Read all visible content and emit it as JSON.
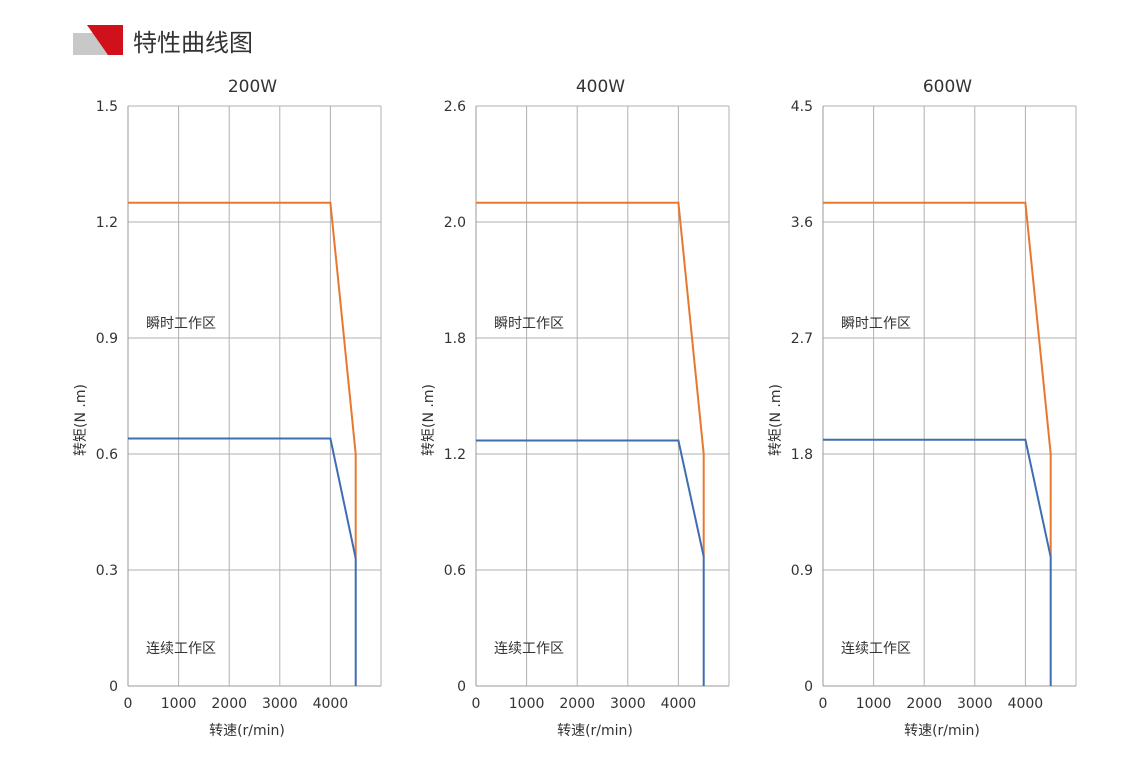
{
  "header": {
    "title": "特性曲线图",
    "logo_colors": {
      "gray": "#c8c8c8",
      "red": "#d0111b"
    }
  },
  "colors": {
    "peak": "#e8782e",
    "continuous": "#3f6db3",
    "grid": "#b0b0b0",
    "axis": "#999999"
  },
  "chart_data": [
    {
      "type": "line",
      "title": "200W",
      "xlabel": "转速(r/min)",
      "ylabel": "转矩(N .m)",
      "xlim": [
        0,
        5000
      ],
      "xticks": [
        0,
        1000,
        2000,
        3000,
        4000
      ],
      "yticks": [
        "0",
        "0.3",
        "0.6",
        "0.9",
        "1.2",
        "1.5"
      ],
      "grid": true,
      "annotations": [
        {
          "text": "瞬时工作区"
        },
        {
          "text": "连续工作区"
        }
      ],
      "series": [
        {
          "key": "peak",
          "x": [
            0,
            4000,
            4500,
            4500
          ],
          "y": [
            1.25,
            1.25,
            0.6,
            0.33
          ]
        },
        {
          "key": "continuous",
          "x": [
            0,
            4000,
            4500,
            4500
          ],
          "y": [
            0.64,
            0.64,
            0.33,
            0
          ]
        }
      ]
    },
    {
      "type": "line",
      "title": "400W",
      "xlabel": "转速(r/min)",
      "ylabel": "转矩(N .m)",
      "xlim": [
        0,
        5000
      ],
      "xticks": [
        0,
        1000,
        2000,
        3000,
        4000
      ],
      "yticks": [
        "0",
        "0.6",
        "1.2",
        "1.8",
        "2.0",
        "2.6"
      ],
      "grid": true,
      "annotations": [
        {
          "text": "瞬时工作区"
        },
        {
          "text": "连续工作区"
        }
      ],
      "series": [
        {
          "key": "peak",
          "x": [
            0,
            4000,
            4500,
            4500
          ],
          "y": [
            2.1,
            2.1,
            1.2,
            0.67
          ]
        },
        {
          "key": "continuous",
          "x": [
            0,
            4000,
            4500,
            4500
          ],
          "y": [
            1.27,
            1.27,
            0.67,
            0
          ]
        }
      ]
    },
    {
      "type": "line",
      "title": "600W",
      "xlabel": "转速(r/min)",
      "ylabel": "转矩(N .m)",
      "xlim": [
        0,
        5000
      ],
      "xticks": [
        0,
        1000,
        2000,
        3000,
        4000
      ],
      "yticks": [
        "0",
        "0.9",
        "1.8",
        "2.7",
        "3.6",
        "4.5"
      ],
      "grid": true,
      "annotations": [
        {
          "text": "瞬时工作区"
        },
        {
          "text": "连续工作区"
        }
      ],
      "series": [
        {
          "key": "peak",
          "x": [
            0,
            4000,
            4500,
            4500
          ],
          "y": [
            3.75,
            3.75,
            1.8,
            1.0
          ]
        },
        {
          "key": "continuous",
          "x": [
            0,
            4000,
            4500,
            4500
          ],
          "y": [
            1.91,
            1.91,
            1.0,
            0
          ]
        }
      ]
    }
  ]
}
